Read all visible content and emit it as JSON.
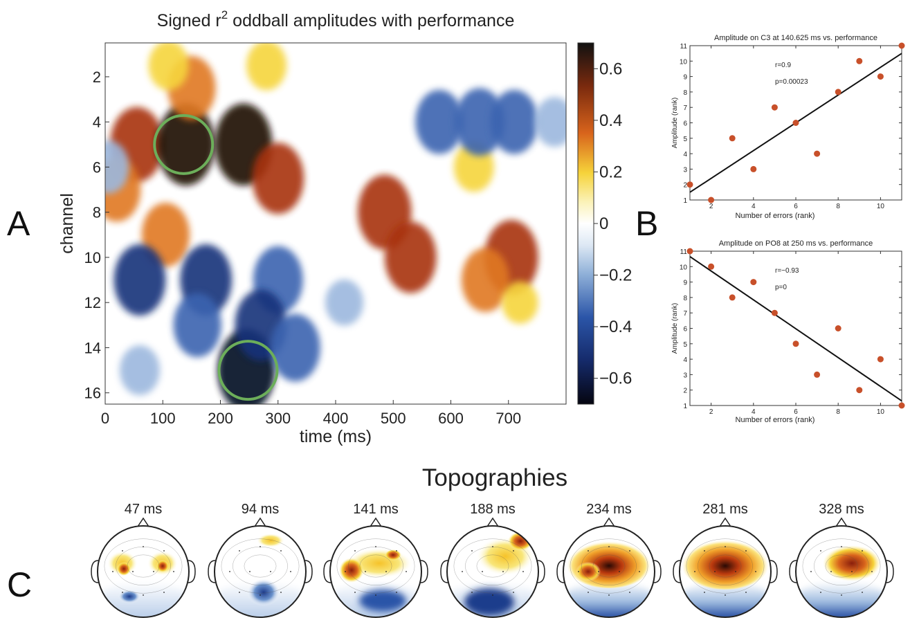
{
  "panel_labels": {
    "a": "A",
    "b": "B",
    "c": "C"
  },
  "heatmap": {
    "title": "Signed r",
    "title_sup": "2",
    "title_rest": " oddball amplitudes with performance",
    "xlabel": "time (ms)",
    "ylabel": "channel",
    "x_ticks": [
      "0",
      "100",
      "200",
      "300",
      "400",
      "500",
      "600",
      "700"
    ],
    "y_ticks": [
      "2",
      "4",
      "6",
      "8",
      "10",
      "12",
      "14",
      "16"
    ],
    "colorbar_ticks": [
      "0.6",
      "0.4",
      "0.2",
      "0",
      "−0.2",
      "−0.4",
      "−0.6"
    ],
    "colors": {
      "pos_max": "#1a0a04",
      "pos_mid": "#c84a14",
      "pos_low": "#f5d23c",
      "zero": "#ffffff",
      "neg_low": "#8fb0d8",
      "neg_mid": "#1e3c8c",
      "neg_max": "#050a1e",
      "circle": "#6cae5a"
    }
  },
  "topo": {
    "title": "Topographies",
    "maps": [
      {
        "label": "47 ms"
      },
      {
        "label": "94 ms"
      },
      {
        "label": "141 ms"
      },
      {
        "label": "188 ms"
      },
      {
        "label": "234 ms"
      },
      {
        "label": "281 ms"
      },
      {
        "label": "328 ms"
      }
    ]
  },
  "chart_data": [
    {
      "type": "heatmap",
      "title": "Signed r^2 oddball amplitudes with performance",
      "xlabel": "time (ms)",
      "ylabel": "channel",
      "xlim": [
        0,
        800
      ],
      "ylim": [
        16.5,
        0.5
      ],
      "clim": [
        -0.7,
        0.7
      ],
      "blobs": [
        {
          "t": 55,
          "ch": 5,
          "v": 0.6
        },
        {
          "t": 140,
          "ch": 5,
          "v": 0.7
        },
        {
          "t": 150,
          "ch": 2.5,
          "v": 0.45
        },
        {
          "t": 240,
          "ch": 5,
          "v": 0.7
        },
        {
          "t": 300,
          "ch": 6.5,
          "v": 0.55
        },
        {
          "t": 110,
          "ch": 1.5,
          "v": 0.25
        },
        {
          "t": 280,
          "ch": 1.5,
          "v": 0.25
        },
        {
          "t": 20,
          "ch": 7,
          "v": 0.45
        },
        {
          "t": 105,
          "ch": 9,
          "v": 0.45
        },
        {
          "t": 485,
          "ch": 8,
          "v": 0.6
        },
        {
          "t": 530,
          "ch": 10,
          "v": 0.55
        },
        {
          "t": 705,
          "ch": 10,
          "v": 0.6
        },
        {
          "t": 660,
          "ch": 11,
          "v": 0.45
        },
        {
          "t": 640,
          "ch": 6,
          "v": 0.25
        },
        {
          "t": 580,
          "ch": 4,
          "v": -0.45
        },
        {
          "t": 650,
          "ch": 4,
          "v": -0.5
        },
        {
          "t": 710,
          "ch": 4,
          "v": -0.45
        },
        {
          "t": 780,
          "ch": 4,
          "v": -0.25
        },
        {
          "t": 60,
          "ch": 11,
          "v": -0.55
        },
        {
          "t": 175,
          "ch": 11,
          "v": -0.55
        },
        {
          "t": 300,
          "ch": 11,
          "v": -0.5
        },
        {
          "t": 245,
          "ch": 15,
          "v": -0.7
        },
        {
          "t": 270,
          "ch": 13,
          "v": -0.55
        },
        {
          "t": 160,
          "ch": 13,
          "v": -0.45
        },
        {
          "t": 330,
          "ch": 14,
          "v": -0.5
        },
        {
          "t": 60,
          "ch": 15,
          "v": -0.25
        },
        {
          "t": 5,
          "ch": 6,
          "v": -0.3
        },
        {
          "t": 415,
          "ch": 12,
          "v": -0.2
        },
        {
          "t": 720,
          "ch": 12,
          "v": 0.15
        }
      ],
      "annotations": [
        {
          "type": "circle",
          "t": 136,
          "ch": 5
        },
        {
          "type": "circle",
          "t": 248,
          "ch": 15
        }
      ]
    },
    {
      "type": "scatter",
      "title": "Amplitude on C3 at 140.625 ms vs. performance",
      "xlabel": "Number of errors (rank)",
      "ylabel": "Amplitude (rank)",
      "xlim": [
        1,
        11
      ],
      "ylim": [
        1,
        11
      ],
      "x_ticks": [
        2,
        4,
        6,
        8,
        10
      ],
      "y_ticks": [
        1,
        2,
        3,
        4,
        5,
        6,
        7,
        8,
        9,
        10,
        11
      ],
      "points": [
        [
          1,
          2
        ],
        [
          2,
          1
        ],
        [
          3,
          5
        ],
        [
          4,
          3
        ],
        [
          5,
          7
        ],
        [
          6,
          6
        ],
        [
          7,
          4
        ],
        [
          8,
          8
        ],
        [
          9,
          10
        ],
        [
          10,
          9
        ],
        [
          11,
          11
        ]
      ],
      "fit": [
        [
          1,
          1.5
        ],
        [
          11,
          10.5
        ]
      ],
      "stats": {
        "r": "r=0.9",
        "p": "p=0.00023"
      },
      "point_color": "#c8502a"
    },
    {
      "type": "scatter",
      "title": "Amplitude on PO8 at 250 ms vs. performance",
      "xlabel": "Number of errors (rank)",
      "ylabel": "Amplitude (rank)",
      "xlim": [
        1,
        11
      ],
      "ylim": [
        1,
        11
      ],
      "x_ticks": [
        2,
        4,
        6,
        8,
        10
      ],
      "y_ticks": [
        1,
        2,
        3,
        4,
        5,
        6,
        7,
        8,
        9,
        10,
        11
      ],
      "points": [
        [
          1,
          11
        ],
        [
          2,
          10
        ],
        [
          3,
          8
        ],
        [
          4,
          9
        ],
        [
          5,
          7
        ],
        [
          6,
          5
        ],
        [
          7,
          3
        ],
        [
          8,
          6
        ],
        [
          9,
          2
        ],
        [
          10,
          4
        ],
        [
          11,
          1
        ]
      ],
      "fit": [
        [
          1,
          10.65
        ],
        [
          11,
          1.3
        ]
      ],
      "stats": {
        "r": "r=−0.93",
        "p": "p=0"
      },
      "point_color": "#c8502a"
    }
  ]
}
